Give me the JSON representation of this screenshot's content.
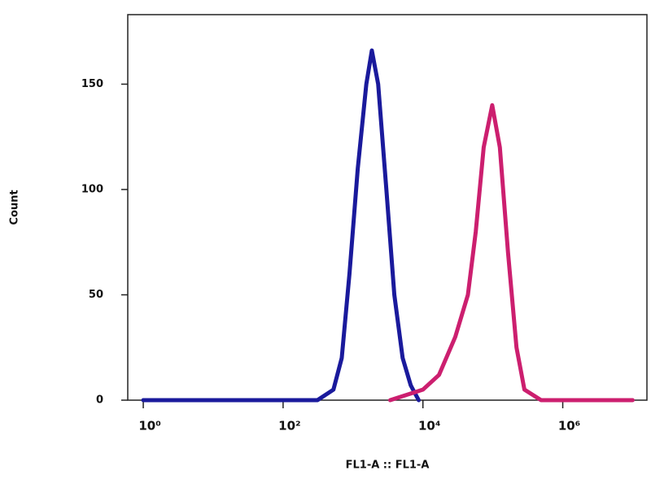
{
  "chart_data": {
    "type": "line",
    "x_label": "FL1-A :: FL1-A",
    "y_label": "Count",
    "xscale": "log",
    "xlim": [
      0.6,
      16000000
    ],
    "ylim": [
      0,
      183
    ],
    "xticks": [
      {
        "value": 1,
        "label": "10⁰"
      },
      {
        "value": 100,
        "label": "10²"
      },
      {
        "value": 10000,
        "label": "10⁴"
      },
      {
        "value": 1000000,
        "label": "10⁶"
      }
    ],
    "yticks": [
      0,
      50,
      100,
      150
    ],
    "series": [
      {
        "color": "#1a1a9c",
        "x": [
          1,
          310,
          525,
          690,
          890,
          1170,
          1550,
          1860,
          2290,
          3000,
          3900,
          5130,
          6700,
          8700
        ],
        "values": [
          0,
          0,
          5,
          20,
          60,
          110,
          150,
          166,
          150,
          100,
          50,
          20,
          7,
          0
        ]
      },
      {
        "color": "#cc1f6f",
        "x": [
          3400,
          10000,
          17000,
          29000,
          44000,
          57000,
          74000,
          98000,
          126000,
          165000,
          218000,
          283000,
          490000,
          10000000
        ],
        "values": [
          0,
          5,
          12,
          30,
          50,
          80,
          120,
          140,
          120,
          70,
          25,
          5,
          0,
          0
        ]
      }
    ]
  }
}
